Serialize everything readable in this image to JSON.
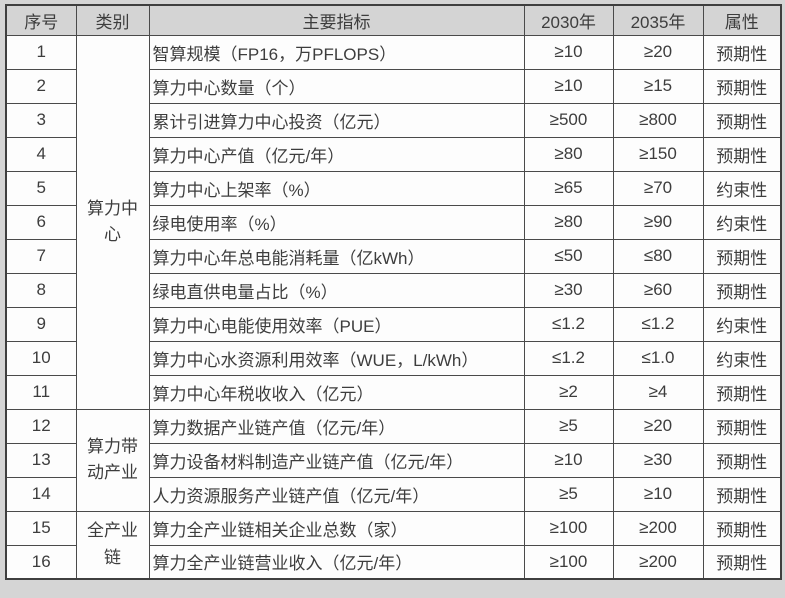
{
  "table": {
    "headers": [
      "序号",
      "类别",
      "主要指标",
      "2030年",
      "2035年",
      "属性"
    ],
    "categories": [
      {
        "label": "算力中心",
        "rowspan": 11
      },
      {
        "label": "算力带动产业",
        "rowspan": 3
      },
      {
        "label": "全产业链",
        "rowspan": 2
      }
    ],
    "rows": [
      {
        "no": "1",
        "indicator": "智算规模（FP16，万PFLOPS）",
        "y2030": "≥10",
        "y2035": "≥20",
        "attr": "预期性"
      },
      {
        "no": "2",
        "indicator": "算力中心数量（个）",
        "y2030": "≥10",
        "y2035": "≥15",
        "attr": "预期性"
      },
      {
        "no": "3",
        "indicator": "累计引进算力中心投资（亿元）",
        "y2030": "≥500",
        "y2035": "≥800",
        "attr": "预期性"
      },
      {
        "no": "4",
        "indicator": "算力中心产值（亿元/年）",
        "y2030": "≥80",
        "y2035": "≥150",
        "attr": "预期性"
      },
      {
        "no": "5",
        "indicator": "算力中心上架率（%）",
        "y2030": "≥65",
        "y2035": "≥70",
        "attr": "约束性"
      },
      {
        "no": "6",
        "indicator": "绿电使用率（%）",
        "y2030": "≥80",
        "y2035": "≥90",
        "attr": "约束性"
      },
      {
        "no": "7",
        "indicator": "算力中心年总电能消耗量（亿kWh）",
        "y2030": "≤50",
        "y2035": "≤80",
        "attr": "预期性"
      },
      {
        "no": "8",
        "indicator": "绿电直供电量占比（%）",
        "y2030": "≥30",
        "y2035": "≥60",
        "attr": "预期性"
      },
      {
        "no": "9",
        "indicator": "算力中心电能使用效率（PUE）",
        "y2030": "≤1.2",
        "y2035": "≤1.2",
        "attr": "约束性"
      },
      {
        "no": "10",
        "indicator": "算力中心水资源利用效率（WUE，L/kWh）",
        "y2030": "≤1.2",
        "y2035": "≤1.0",
        "attr": "约束性"
      },
      {
        "no": "11",
        "indicator": "算力中心年税收收入（亿元）",
        "y2030": "≥2",
        "y2035": "≥4",
        "attr": "预期性"
      },
      {
        "no": "12",
        "indicator": "算力数据产业链产值（亿元/年）",
        "y2030": "≥5",
        "y2035": "≥20",
        "attr": "预期性"
      },
      {
        "no": "13",
        "indicator": "算力设备材料制造产业链产值（亿元/年）",
        "y2030": "≥10",
        "y2035": "≥30",
        "attr": "预期性"
      },
      {
        "no": "14",
        "indicator": "人力资源服务产业链产值（亿元/年）",
        "y2030": "≥5",
        "y2035": "≥10",
        "attr": "预期性"
      },
      {
        "no": "15",
        "indicator": "算力全产业链相关企业总数（家）",
        "y2030": "≥100",
        "y2035": "≥200",
        "attr": "预期性"
      },
      {
        "no": "16",
        "indicator": "算力全产业链营业收入（亿元/年）",
        "y2030": "≥100",
        "y2035": "≥200",
        "attr": "预期性"
      }
    ]
  },
  "colors": {
    "page_background": "#d5d5d5",
    "header_background": "#d4d4d4",
    "cell_background": "#fdfdfd",
    "border": "#4a4a4a",
    "text": "#3d3d3d"
  }
}
